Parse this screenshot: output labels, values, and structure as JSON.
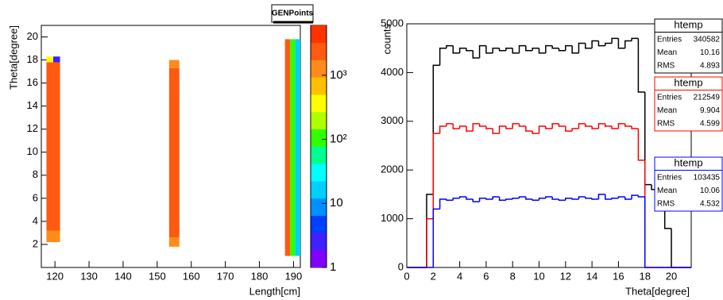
{
  "chart_data": [
    {
      "type": "heatmap",
      "title": "GENPoints",
      "xlabel": "Length[cm]",
      "ylabel": "Theta[degree]",
      "xlim": [
        116,
        192
      ],
      "ylim": [
        0,
        21
      ],
      "zlim": [
        1,
        6000
      ],
      "zlog": true,
      "xticks": [
        120,
        130,
        140,
        150,
        160,
        170,
        180,
        190
      ],
      "yticks": [
        2,
        4,
        6,
        8,
        10,
        12,
        14,
        16,
        18,
        20
      ],
      "zticks": [
        1,
        10,
        {
          "value": 100,
          "label": "10²"
        },
        {
          "value": 1000,
          "label": "10³"
        }
      ],
      "palette": [
        "#8000ff",
        "#4020ff",
        "#0040ff",
        "#0090ff",
        "#00d0ff",
        "#00ffff",
        "#00ff90",
        "#30ff00",
        "#b0ff00",
        "#ffff00",
        "#ffc000",
        "#ff8c1a",
        "#ff5a10",
        "#ff3300"
      ],
      "cells": [
        {
          "x0": 117.5,
          "x1": 121.5,
          "y0": 2.2,
          "y1": 3.2,
          "value": 1500
        },
        {
          "x0": 117.5,
          "x1": 121.5,
          "y0": 3.2,
          "y1": 17.8,
          "value": 3000
        },
        {
          "x0": 117.5,
          "x1": 119.5,
          "y0": 17.8,
          "y1": 18.3,
          "value": 400
        },
        {
          "x0": 119.5,
          "x1": 121.5,
          "y0": 17.8,
          "y1": 18.3,
          "value": 3
        },
        {
          "x0": 153.5,
          "x1": 156.5,
          "y0": 1.8,
          "y1": 2.6,
          "value": 1500
        },
        {
          "x0": 153.5,
          "x1": 156.5,
          "y0": 2.6,
          "y1": 17.3,
          "value": 3000
        },
        {
          "x0": 153.5,
          "x1": 156.5,
          "y0": 17.3,
          "y1": 18,
          "value": 1500
        },
        {
          "x0": 187.5,
          "x1": 189,
          "y0": 1,
          "y1": 19.8,
          "value": 3000
        },
        {
          "x0": 189,
          "x1": 190.5,
          "y0": 1,
          "y1": 19.8,
          "value": 100
        },
        {
          "x0": 190.5,
          "x1": 192,
          "y0": 1,
          "y1": 19.8,
          "value": 15
        }
      ]
    },
    {
      "type": "histogram",
      "xlabel": "Theta[degree]",
      "ylabel": "counts",
      "xlim": [
        0,
        21.5
      ],
      "ylim": [
        0,
        5000
      ],
      "xticks": [
        0,
        2,
        4,
        6,
        8,
        10,
        12,
        14,
        16,
        18,
        20
      ],
      "yticks": [
        0,
        1000,
        2000,
        3000,
        4000,
        5000
      ],
      "bins": [
        0,
        0.5,
        1,
        1.5,
        2,
        2.5,
        3,
        3.5,
        4,
        4.5,
        5,
        5.5,
        6,
        6.5,
        7,
        7.5,
        8,
        8.5,
        9,
        9.5,
        10,
        10.5,
        11,
        11.5,
        12,
        12.5,
        13,
        13.5,
        14,
        14.5,
        15,
        15.5,
        16,
        16.5,
        17,
        17.5,
        18,
        18.5,
        19,
        19.5,
        20,
        20.5,
        21,
        21.5
      ],
      "series": [
        {
          "name": "htemp",
          "color": "#000000",
          "stats": [
            {
              "label": "Entries",
              "value": 340582
            },
            {
              "label": "Mean",
              "value": 10.16
            },
            {
              "label": "RMS",
              "value": 4.893
            }
          ],
          "values": [
            0,
            0,
            0,
            1500,
            4150,
            4500,
            4550,
            4400,
            4500,
            4450,
            4300,
            4550,
            4400,
            4500,
            4450,
            4500,
            4400,
            4550,
            4450,
            4500,
            4400,
            4550,
            4500,
            4450,
            4550,
            4400,
            4600,
            4500,
            4650,
            4550,
            4600,
            4700,
            4500,
            4650,
            4700,
            3600,
            1700,
            1600,
            1550,
            800,
            0,
            0,
            0
          ]
        },
        {
          "name": "htemp",
          "color": "#ff0000",
          "stats": [
            {
              "label": "Entries",
              "value": 212549
            },
            {
              "label": "Mean",
              "value": 9.904
            },
            {
              "label": "RMS",
              "value": 4.599
            }
          ],
          "values": [
            0,
            0,
            0,
            1000,
            2750,
            2900,
            2950,
            2850,
            2900,
            2800,
            2950,
            2900,
            2850,
            2750,
            2900,
            2850,
            2950,
            2900,
            2800,
            2750,
            2900,
            2850,
            2950,
            2900,
            2800,
            2850,
            2950,
            2900,
            2850,
            2950,
            2900,
            2850,
            2950,
            2900,
            2850,
            2200,
            0,
            0,
            0,
            0,
            0,
            0,
            0
          ]
        },
        {
          "name": "htemp",
          "color": "#0000ff",
          "stats": [
            {
              "label": "Entries",
              "value": 103435
            },
            {
              "label": "Mean",
              "value": 10.06
            },
            {
              "label": "RMS",
              "value": 4.532
            }
          ],
          "values": [
            0,
            0,
            0,
            0,
            1200,
            1400,
            1380,
            1420,
            1450,
            1400,
            1350,
            1420,
            1400,
            1450,
            1380,
            1400,
            1420,
            1450,
            1400,
            1380,
            1420,
            1450,
            1400,
            1380,
            1420,
            1400,
            1450,
            1420,
            1400,
            1500,
            1400,
            1420,
            1450,
            1400,
            1480,
            1450,
            0,
            0,
            0,
            0,
            0,
            0,
            0
          ]
        }
      ]
    }
  ]
}
